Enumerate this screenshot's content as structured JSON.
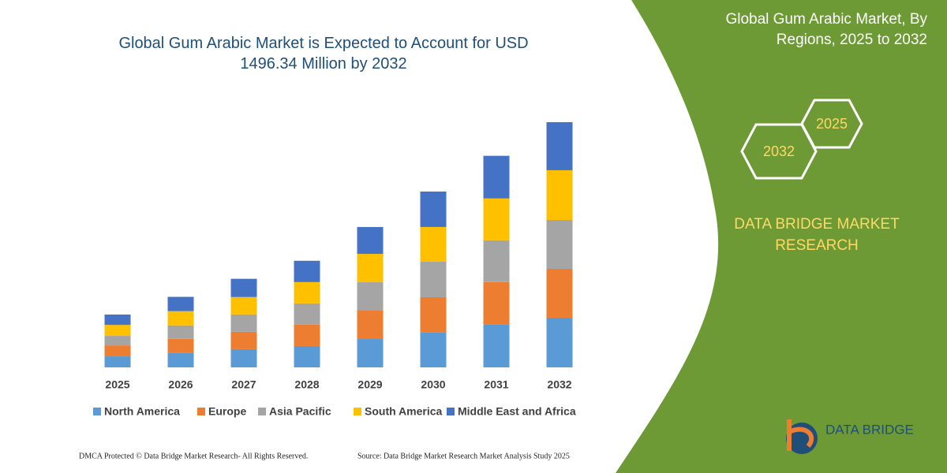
{
  "chart_data": {
    "type": "stacked_bar",
    "title": "Global Gum Arabic Market is Expected to Account for USD 1496.34 Million by 2032",
    "side_title": "Global Gum Arabic Market, By Regions, 2025 to 2032",
    "hex_labels": [
      "2032",
      "2025"
    ],
    "brand": "DATA BRIDGE MARKET RESEARCH",
    "logo_text": "DATA BRIDGE",
    "footer_left": "DMCA Protected © Data Bridge Market Research-  All Rights Reserved.",
    "footer_right": "Source: Data Bridge Market Research  Market Analysis Study 2025",
    "categories": [
      "2025",
      "2026",
      "2027",
      "2028",
      "2029",
      "2030",
      "2031",
      "2032"
    ],
    "series": [
      {
        "name": "North America",
        "color": "#5b9bd5",
        "values": [
          67,
          87,
          111,
          130,
          173,
          212,
          260,
          303
        ]
      },
      {
        "name": "Europe",
        "color": "#ed7d31",
        "values": [
          67,
          87,
          106,
          130,
          173,
          216,
          260,
          298
        ]
      },
      {
        "name": "Asia Pacific",
        "color": "#a5a5a5",
        "values": [
          58,
          82,
          106,
          130,
          173,
          216,
          255,
          298
        ]
      },
      {
        "name": "South America",
        "color": "#ffc000",
        "values": [
          67,
          87,
          106,
          130,
          173,
          212,
          255,
          303
        ]
      },
      {
        "name": "Middle East and Africa",
        "color": "#4472c4",
        "values": [
          63,
          87,
          111,
          130,
          164,
          216,
          260,
          293
        ]
      }
    ]
  }
}
